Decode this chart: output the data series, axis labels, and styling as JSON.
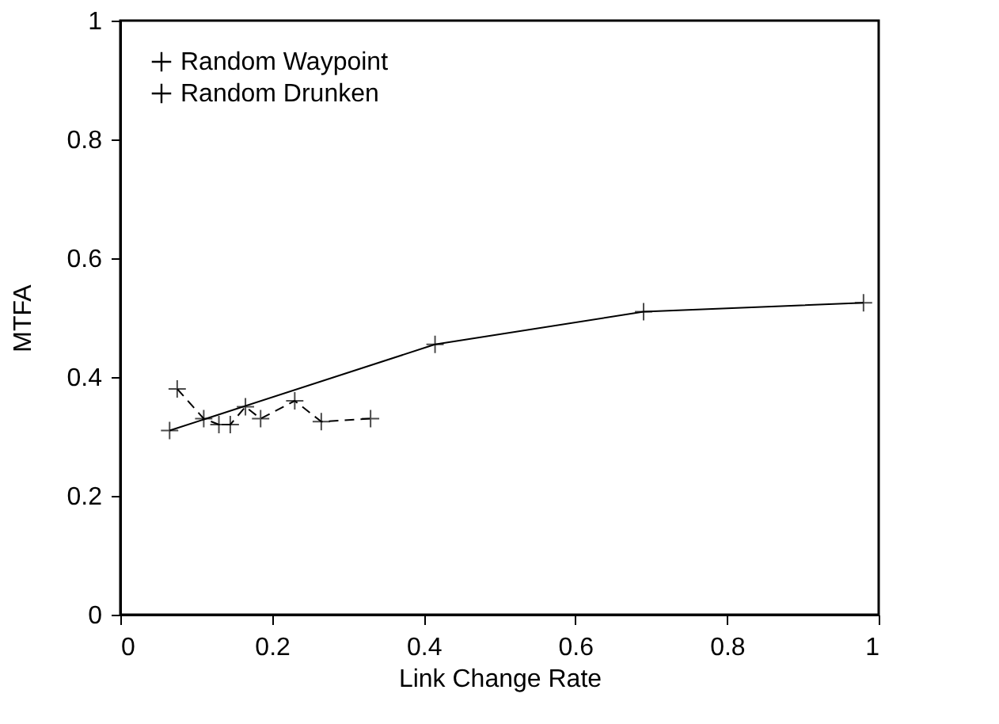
{
  "chart_data": {
    "type": "line",
    "xlabel": "Link Change Rate",
    "ylabel": "MTFA",
    "xlim": [
      0,
      1
    ],
    "ylim": [
      0,
      1
    ],
    "xticks": [
      0,
      0.2,
      0.4,
      0.6,
      0.8,
      1
    ],
    "yticks": [
      0,
      0.2,
      0.4,
      0.6,
      0.8,
      1
    ],
    "grid": false,
    "legend": "top left",
    "marker": "cross",
    "series": [
      {
        "name": "Random Waypoint",
        "color": "#000000",
        "line_style": "solid",
        "x": [
          0.065,
          0.415,
          0.69,
          0.98
        ],
        "values": [
          0.31,
          0.455,
          0.51,
          0.525
        ]
      },
      {
        "name": "Random Drunken",
        "color": "#000000",
        "line_style": "dashed",
        "x": [
          0.075,
          0.11,
          0.13,
          0.145,
          0.165,
          0.185,
          0.23,
          0.265,
          0.33
        ],
        "values": [
          0.38,
          0.33,
          0.32,
          0.32,
          0.35,
          0.33,
          0.36,
          0.325,
          0.33
        ]
      }
    ]
  }
}
